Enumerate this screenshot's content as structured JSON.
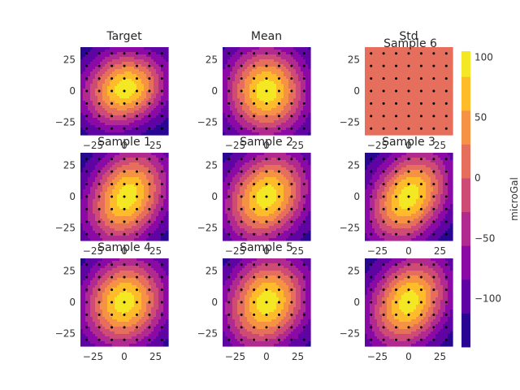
{
  "chart_data": {
    "type": "heatmap",
    "grid": false,
    "colormap": "plasma",
    "style": "filled-contour panels with black station dots",
    "x_range": [
      -35,
      35
    ],
    "y_range": [
      -35,
      35
    ],
    "x_ticks": [
      -25,
      0,
      25
    ],
    "y_ticks": [
      -25,
      0,
      25
    ],
    "x_tick_labels": [
      "−25",
      "0",
      "25"
    ],
    "y_tick_labels": [
      "−25",
      "0",
      "25"
    ],
    "station_grid": [
      -30,
      -20,
      -10,
      0,
      10,
      20,
      30
    ],
    "colorbar": {
      "label": "microGal",
      "range": [
        -140,
        105
      ],
      "ticks": [
        100,
        50,
        0,
        -50,
        -100
      ],
      "tick_labels": [
        "100",
        "50",
        "0",
        "−50",
        "−100"
      ],
      "contour_levels": [
        -140,
        -112,
        -84,
        -56,
        -28,
        0,
        28,
        56,
        84,
        105
      ]
    },
    "panels": [
      {
        "title": "Target",
        "anomaly": {
          "amplitude": 240,
          "x0": 0,
          "y0": 2,
          "sx": 22,
          "sy": 20,
          "rho": -0.15,
          "offset": -140,
          "wobble": 0.08
        }
      },
      {
        "title": "Mean",
        "anomaly": {
          "amplitude": 240,
          "x0": 0,
          "y0": 0,
          "sx": 22,
          "sy": 24,
          "rho": 0,
          "offset": -140,
          "wobble": 0
        }
      },
      {
        "title": "Std",
        "subtitle": "Sample 6",
        "anomaly": {
          "amplitude": 0,
          "x0": 0,
          "y0": 0,
          "sx": 1,
          "sy": 1,
          "rho": 0,
          "offset": 8,
          "wobble": 0
        }
      },
      {
        "title": "Sample 1",
        "anomaly": {
          "amplitude": 240,
          "x0": 2,
          "y0": 0,
          "sx": 21,
          "sy": 25,
          "rho": -0.25,
          "offset": -140,
          "wobble": 0
        }
      },
      {
        "title": "Sample 2",
        "anomaly": {
          "amplitude": 240,
          "x0": 0,
          "y0": 0,
          "sx": 22,
          "sy": 24,
          "rho": -0.2,
          "offset": -140,
          "wobble": 0
        }
      },
      {
        "title": "Sample 3",
        "anomaly": {
          "amplitude": 240,
          "x0": 0,
          "y0": 0,
          "sx": 21,
          "sy": 24,
          "rho": -0.3,
          "offset": -140,
          "wobble": 0
        }
      },
      {
        "title": "Sample 4",
        "anomaly": {
          "amplitude": 240,
          "x0": 0,
          "y0": 0,
          "sx": 22,
          "sy": 24,
          "rho": -0.1,
          "offset": -140,
          "wobble": 0
        }
      },
      {
        "title": "Sample 5",
        "anomaly": {
          "amplitude": 240,
          "x0": 0,
          "y0": 0,
          "sx": 22,
          "sy": 25,
          "rho": -0.15,
          "offset": -140,
          "wobble": 0.05
        }
      },
      {
        "title": "",
        "anomaly": {
          "amplitude": 240,
          "x0": 0,
          "y0": 0,
          "sx": 21,
          "sy": 24,
          "rho": -0.25,
          "offset": -140,
          "wobble": 0
        }
      }
    ]
  }
}
